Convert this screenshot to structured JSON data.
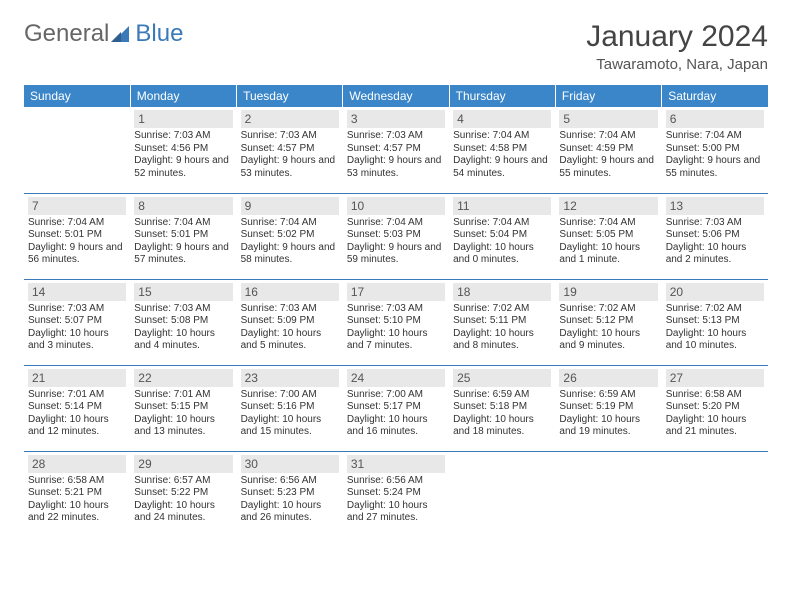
{
  "logo": {
    "text1": "General",
    "text2": "Blue"
  },
  "title": "January 2024",
  "location": "Tawaramoto, Nara, Japan",
  "colors": {
    "header_bg": "#3a86c8",
    "header_text": "#ffffff",
    "daynum_bg": "#e8e8e8",
    "border": "#3a7ab8",
    "text": "#333333",
    "logo_blue": "#3a7ab8",
    "logo_gray": "#666666",
    "background": "#ffffff"
  },
  "typography": {
    "title_fontsize": 30,
    "location_fontsize": 15,
    "header_fontsize": 12,
    "daynum_fontsize": 12,
    "cell_fontsize": 10
  },
  "day_header": [
    "Sunday",
    "Monday",
    "Tuesday",
    "Wednesday",
    "Thursday",
    "Friday",
    "Saturday"
  ],
  "weeks": [
    [
      {
        "n": "",
        "sr": "",
        "ss": "",
        "dl": ""
      },
      {
        "n": "1",
        "sr": "Sunrise: 7:03 AM",
        "ss": "Sunset: 4:56 PM",
        "dl": "Daylight: 9 hours and 52 minutes."
      },
      {
        "n": "2",
        "sr": "Sunrise: 7:03 AM",
        "ss": "Sunset: 4:57 PM",
        "dl": "Daylight: 9 hours and 53 minutes."
      },
      {
        "n": "3",
        "sr": "Sunrise: 7:03 AM",
        "ss": "Sunset: 4:57 PM",
        "dl": "Daylight: 9 hours and 53 minutes."
      },
      {
        "n": "4",
        "sr": "Sunrise: 7:04 AM",
        "ss": "Sunset: 4:58 PM",
        "dl": "Daylight: 9 hours and 54 minutes."
      },
      {
        "n": "5",
        "sr": "Sunrise: 7:04 AM",
        "ss": "Sunset: 4:59 PM",
        "dl": "Daylight: 9 hours and 55 minutes."
      },
      {
        "n": "6",
        "sr": "Sunrise: 7:04 AM",
        "ss": "Sunset: 5:00 PM",
        "dl": "Daylight: 9 hours and 55 minutes."
      }
    ],
    [
      {
        "n": "7",
        "sr": "Sunrise: 7:04 AM",
        "ss": "Sunset: 5:01 PM",
        "dl": "Daylight: 9 hours and 56 minutes."
      },
      {
        "n": "8",
        "sr": "Sunrise: 7:04 AM",
        "ss": "Sunset: 5:01 PM",
        "dl": "Daylight: 9 hours and 57 minutes."
      },
      {
        "n": "9",
        "sr": "Sunrise: 7:04 AM",
        "ss": "Sunset: 5:02 PM",
        "dl": "Daylight: 9 hours and 58 minutes."
      },
      {
        "n": "10",
        "sr": "Sunrise: 7:04 AM",
        "ss": "Sunset: 5:03 PM",
        "dl": "Daylight: 9 hours and 59 minutes."
      },
      {
        "n": "11",
        "sr": "Sunrise: 7:04 AM",
        "ss": "Sunset: 5:04 PM",
        "dl": "Daylight: 10 hours and 0 minutes."
      },
      {
        "n": "12",
        "sr": "Sunrise: 7:04 AM",
        "ss": "Sunset: 5:05 PM",
        "dl": "Daylight: 10 hours and 1 minute."
      },
      {
        "n": "13",
        "sr": "Sunrise: 7:03 AM",
        "ss": "Sunset: 5:06 PM",
        "dl": "Daylight: 10 hours and 2 minutes."
      }
    ],
    [
      {
        "n": "14",
        "sr": "Sunrise: 7:03 AM",
        "ss": "Sunset: 5:07 PM",
        "dl": "Daylight: 10 hours and 3 minutes."
      },
      {
        "n": "15",
        "sr": "Sunrise: 7:03 AM",
        "ss": "Sunset: 5:08 PM",
        "dl": "Daylight: 10 hours and 4 minutes."
      },
      {
        "n": "16",
        "sr": "Sunrise: 7:03 AM",
        "ss": "Sunset: 5:09 PM",
        "dl": "Daylight: 10 hours and 5 minutes."
      },
      {
        "n": "17",
        "sr": "Sunrise: 7:03 AM",
        "ss": "Sunset: 5:10 PM",
        "dl": "Daylight: 10 hours and 7 minutes."
      },
      {
        "n": "18",
        "sr": "Sunrise: 7:02 AM",
        "ss": "Sunset: 5:11 PM",
        "dl": "Daylight: 10 hours and 8 minutes."
      },
      {
        "n": "19",
        "sr": "Sunrise: 7:02 AM",
        "ss": "Sunset: 5:12 PM",
        "dl": "Daylight: 10 hours and 9 minutes."
      },
      {
        "n": "20",
        "sr": "Sunrise: 7:02 AM",
        "ss": "Sunset: 5:13 PM",
        "dl": "Daylight: 10 hours and 10 minutes."
      }
    ],
    [
      {
        "n": "21",
        "sr": "Sunrise: 7:01 AM",
        "ss": "Sunset: 5:14 PM",
        "dl": "Daylight: 10 hours and 12 minutes."
      },
      {
        "n": "22",
        "sr": "Sunrise: 7:01 AM",
        "ss": "Sunset: 5:15 PM",
        "dl": "Daylight: 10 hours and 13 minutes."
      },
      {
        "n": "23",
        "sr": "Sunrise: 7:00 AM",
        "ss": "Sunset: 5:16 PM",
        "dl": "Daylight: 10 hours and 15 minutes."
      },
      {
        "n": "24",
        "sr": "Sunrise: 7:00 AM",
        "ss": "Sunset: 5:17 PM",
        "dl": "Daylight: 10 hours and 16 minutes."
      },
      {
        "n": "25",
        "sr": "Sunrise: 6:59 AM",
        "ss": "Sunset: 5:18 PM",
        "dl": "Daylight: 10 hours and 18 minutes."
      },
      {
        "n": "26",
        "sr": "Sunrise: 6:59 AM",
        "ss": "Sunset: 5:19 PM",
        "dl": "Daylight: 10 hours and 19 minutes."
      },
      {
        "n": "27",
        "sr": "Sunrise: 6:58 AM",
        "ss": "Sunset: 5:20 PM",
        "dl": "Daylight: 10 hours and 21 minutes."
      }
    ],
    [
      {
        "n": "28",
        "sr": "Sunrise: 6:58 AM",
        "ss": "Sunset: 5:21 PM",
        "dl": "Daylight: 10 hours and 22 minutes."
      },
      {
        "n": "29",
        "sr": "Sunrise: 6:57 AM",
        "ss": "Sunset: 5:22 PM",
        "dl": "Daylight: 10 hours and 24 minutes."
      },
      {
        "n": "30",
        "sr": "Sunrise: 6:56 AM",
        "ss": "Sunset: 5:23 PM",
        "dl": "Daylight: 10 hours and 26 minutes."
      },
      {
        "n": "31",
        "sr": "Sunrise: 6:56 AM",
        "ss": "Sunset: 5:24 PM",
        "dl": "Daylight: 10 hours and 27 minutes."
      },
      {
        "n": "",
        "sr": "",
        "ss": "",
        "dl": ""
      },
      {
        "n": "",
        "sr": "",
        "ss": "",
        "dl": ""
      },
      {
        "n": "",
        "sr": "",
        "ss": "",
        "dl": ""
      }
    ]
  ]
}
